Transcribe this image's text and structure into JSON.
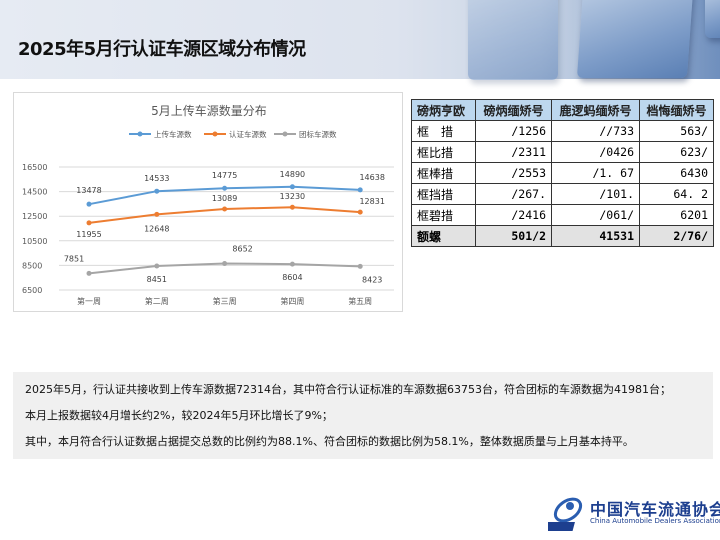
{
  "header": {
    "title": "2025年5月行认证车源区域分布情况"
  },
  "chart_data": {
    "type": "line",
    "title": "5月上传车源数量分布",
    "categories": [
      "第一周",
      "第二周",
      "第三周",
      "第四周",
      "第五周"
    ],
    "series": [
      {
        "name": "上传车源数",
        "color": "#5b9bd5",
        "values": [
          13478,
          14533,
          14775,
          14890,
          14638
        ]
      },
      {
        "name": "认证车源数",
        "color": "#ed7d31",
        "values": [
          11955,
          12648,
          13089,
          13230,
          12831
        ]
      },
      {
        "name": "团标车源数",
        "color": "#a5a5a5",
        "values": [
          7851,
          8451,
          8652,
          8604,
          8423
        ]
      }
    ],
    "yticks": [
      6500,
      8500,
      10500,
      12500,
      14500,
      16500
    ],
    "ylim": [
      6500,
      16500
    ],
    "grid": true,
    "legend": "top"
  },
  "table": {
    "headers": [
      "磅炳亨欧",
      "磅炳缅矫号",
      "鹿逻蚂缅矫号",
      "档悔缅矫号"
    ],
    "rows": [
      [
        "框　措",
        "/1256",
        "//733",
        "563/"
      ],
      [
        "框比措",
        "/2311",
        "/0426",
        "623/"
      ],
      [
        "框棒措",
        "/2553",
        "/1. 67",
        "6430"
      ],
      [
        "框挡措",
        "/267.",
        "/101.",
        "64. 2"
      ],
      [
        "框碧措",
        "/2416",
        "/061/",
        "6201"
      ]
    ],
    "total": [
      "额螺",
      "501/2",
      "41531",
      "2/76/"
    ]
  },
  "summary": [
    "2025年5月，行认证共接收到上传车源数据72314台，其中符合行认证标准的车源数据63753台，符合团标的车源数据为41981台；",
    "本月上报数据较4月增长约2%，较2024年5月环比增长了9%；",
    "其中，本月符合行认证数据占据提交总数的比例约为88.1%、符合团标的数据比例为58.1%，整体数据质量与上月基本持平。"
  ],
  "logo": {
    "cn": "中国汽车流通协会",
    "en": "China Automobile Dealers Association",
    "mark": "CADA"
  }
}
